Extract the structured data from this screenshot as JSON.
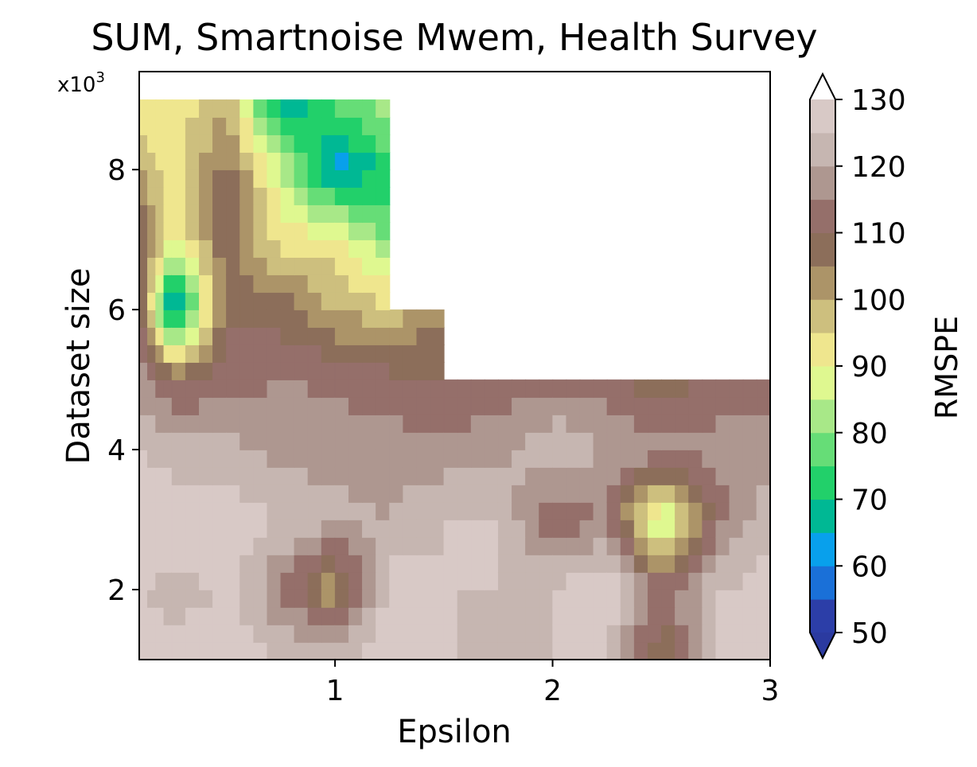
{
  "chart_data": {
    "type": "heatmap",
    "subtype": "filled-contour",
    "title": "SUM, Smartnoise Mwem, Health Survey",
    "xlabel": "Epsilon",
    "ylabel": "Dataset size",
    "y_offset_label": "x10",
    "y_offset_exponent": "3",
    "xlim": [
      0.1,
      3.0
    ],
    "ylim": [
      1000,
      9400
    ],
    "x_ticks": [
      {
        "value": 1,
        "label": "1"
      },
      {
        "value": 2,
        "label": "2"
      },
      {
        "value": 3,
        "label": "3"
      }
    ],
    "y_ticks": [
      {
        "value": 2000,
        "label": "2"
      },
      {
        "value": 4000,
        "label": "4"
      },
      {
        "value": 6000,
        "label": "6"
      },
      {
        "value": 8000,
        "label": "8"
      }
    ],
    "x": [
      0.1,
      0.25,
      0.5,
      0.75,
      1.0,
      1.25,
      1.5,
      1.75,
      2.0,
      2.25,
      2.5,
      2.75,
      3.0
    ],
    "y": [
      1000,
      2000,
      3000,
      4000,
      5000,
      6000,
      7000,
      8000,
      9000
    ],
    "z": [
      [
        128,
        128,
        128,
        125,
        125,
        128,
        126,
        120,
        125,
        125,
        105,
        125,
        128
      ],
      [
        126,
        122,
        126,
        115,
        100,
        128,
        125,
        125,
        125,
        130,
        112,
        125,
        128
      ],
      [
        130,
        130,
        128,
        125,
        122,
        120,
        125,
        125,
        110,
        115,
        82,
        112,
        125
      ],
      [
        125,
        122,
        122,
        118,
        118,
        117,
        117,
        118,
        125,
        120,
        117,
        117,
        117
      ],
      [
        118,
        110,
        112,
        115,
        114,
        112,
        110,
        112,
        113,
        112,
        105,
        112,
        112
      ],
      [
        113,
        58,
        109,
        108,
        100,
        96,
        105,
        null,
        null,
        null,
        null,
        null,
        null
      ],
      [
        113,
        88,
        108,
        92,
        92,
        78,
        null,
        null,
        null,
        null,
        null,
        null,
        null
      ],
      [
        100,
        92,
        108,
        86,
        62,
        72,
        null,
        null,
        null,
        null,
        null,
        null,
        null
      ],
      [
        90,
        92,
        98,
        64,
        76,
        84,
        null,
        null,
        null,
        null,
        null,
        null,
        null
      ]
    ],
    "colorbar": {
      "label": "RMSPE",
      "range": [
        50,
        130
      ],
      "extend": "both",
      "ticks": [
        {
          "value": 50,
          "label": "50"
        },
        {
          "value": 60,
          "label": "60"
        },
        {
          "value": 70,
          "label": "70"
        },
        {
          "value": 80,
          "label": "80"
        },
        {
          "value": 90,
          "label": "90"
        },
        {
          "value": 100,
          "label": "100"
        },
        {
          "value": 110,
          "label": "110"
        },
        {
          "value": 120,
          "label": "120"
        },
        {
          "value": 130,
          "label": "130"
        }
      ],
      "levels": [
        50,
        55,
        60,
        65,
        70,
        75,
        80,
        85,
        90,
        95,
        100,
        105,
        110,
        115,
        120,
        125,
        130
      ],
      "under_color": "#2b3aa0",
      "over_color": "#ffffff",
      "colors": [
        "#2c3ea8",
        "#1a70d8",
        "#08a0ec",
        "#00b894",
        "#22d06a",
        "#66dd77",
        "#a8e888",
        "#dff890",
        "#efe68e",
        "#cdbf7e",
        "#ac9468",
        "#8c6e5a",
        "#956f6a",
        "#ae9790",
        "#c6b6b1",
        "#d8c9c6",
        "#f0ecec"
      ]
    },
    "grid": false,
    "legend": "none"
  }
}
